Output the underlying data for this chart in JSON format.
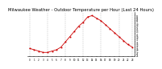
{
  "title": "Milwaukee Weather - Outdoor Temperature per Hour (Last 24 Hours)",
  "x": [
    0,
    1,
    2,
    3,
    4,
    5,
    6,
    7,
    8,
    9,
    10,
    11,
    12,
    13,
    14,
    15,
    16,
    17,
    18,
    19,
    20,
    21,
    22,
    23
  ],
  "y": [
    30,
    29,
    28,
    27,
    27,
    28,
    29,
    31,
    35,
    39,
    43,
    47,
    50,
    54,
    55,
    53,
    51,
    48,
    45,
    42,
    39,
    36,
    33,
    31
  ],
  "line_color": "#cc0000",
  "bg_color": "#ffffff",
  "grid_color": "#999999",
  "title_color": "#000000",
  "title_fontsize": 3.8,
  "ylim": [
    24,
    58
  ],
  "xlim": [
    -0.5,
    23.5
  ],
  "yticks": [
    25,
    27,
    29,
    31,
    33,
    35,
    37,
    39,
    41,
    43,
    45,
    47,
    49,
    51,
    53,
    55
  ],
  "xtick_labels": [
    "0",
    "1",
    "2",
    "3",
    "4",
    "5",
    "6",
    "7",
    "8",
    "9",
    "10",
    "11",
    "12",
    "13",
    "14",
    "15",
    "16",
    "17",
    "18",
    "19",
    "20",
    "21",
    "22",
    "23"
  ],
  "grid_x_positions": [
    0,
    4,
    8,
    12,
    16,
    20,
    23
  ]
}
